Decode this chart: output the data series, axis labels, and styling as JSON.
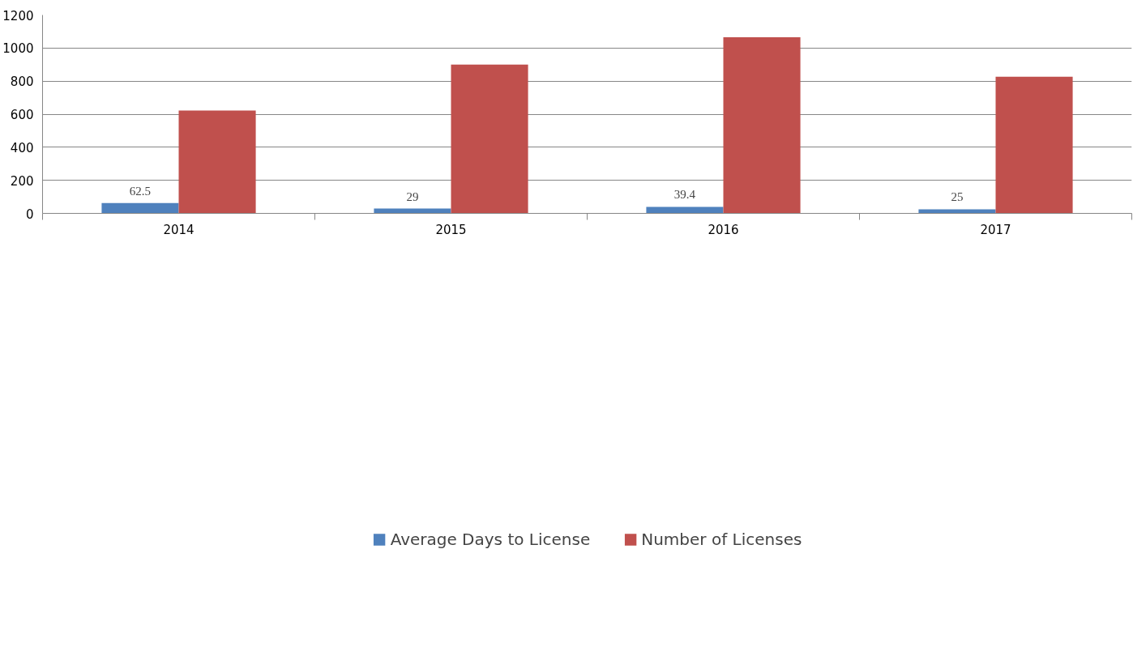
{
  "chart_data": {
    "type": "bar",
    "categories": [
      "2014",
      "2015",
      "2016",
      "2017"
    ],
    "series": [
      {
        "name": "Average Days to License",
        "color": "#4f81bd",
        "values": [
          62.5,
          29,
          39.4,
          25
        ],
        "value_labels": [
          "62.5",
          "29",
          "39.4",
          "25"
        ]
      },
      {
        "name": "Number of Licenses",
        "color": "#c0504d",
        "values": [
          622,
          900,
          1065,
          827
        ]
      }
    ],
    "ylim": [
      0,
      1200
    ],
    "yticks": [
      0,
      200,
      400,
      600,
      800,
      1000,
      1200
    ],
    "grid": "y",
    "legend": "bottom"
  }
}
